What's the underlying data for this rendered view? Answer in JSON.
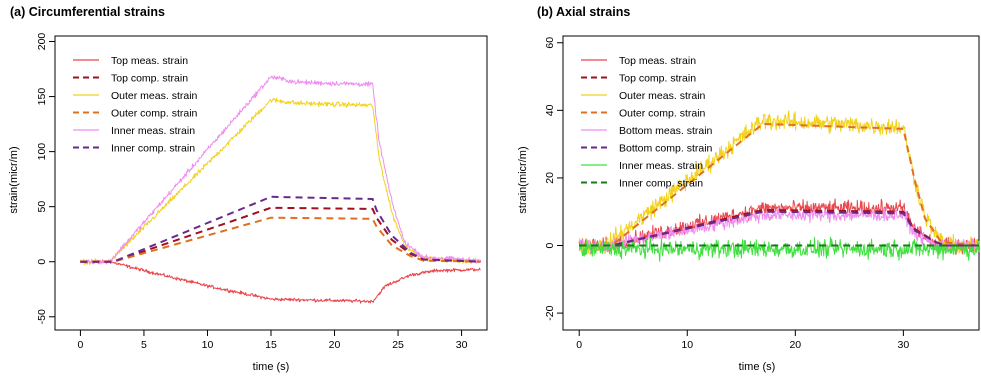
{
  "chart_data": [
    {
      "type": "line",
      "title": "(a) Circumferential strains",
      "xlabel": "time (s)",
      "ylabel": "strain(micr/m)",
      "xlim": [
        -2,
        32
      ],
      "ylim": [
        -62,
        205
      ],
      "xticks": [
        0,
        5,
        10,
        15,
        20,
        25,
        30
      ],
      "yticks": [
        -50,
        0,
        50,
        100,
        150,
        200
      ],
      "legend": "top-left",
      "series": [
        {
          "name": "Top meas. strain",
          "style": "solid",
          "color": "#e8474c",
          "noise": 1.2,
          "points": [
            [
              0,
              0
            ],
            [
              2.3,
              0
            ],
            [
              3,
              -2
            ],
            [
              5,
              -8
            ],
            [
              10,
              -22
            ],
            [
              15,
              -34
            ],
            [
              23,
              -36
            ],
            [
              23.3,
              -32
            ],
            [
              24,
              -22
            ],
            [
              26,
              -12
            ],
            [
              28,
              -8
            ],
            [
              31.5,
              -7
            ]
          ]
        },
        {
          "name": "Top comp. strain",
          "style": "dashed",
          "color": "#a01020",
          "points": [
            [
              0,
              0
            ],
            [
              2.6,
              0
            ],
            [
              15,
              49
            ],
            [
              23,
              48
            ],
            [
              23.3,
              40
            ],
            [
              24.5,
              20
            ],
            [
              26,
              7
            ],
            [
              27,
              2
            ],
            [
              31.5,
              0
            ]
          ]
        },
        {
          "name": "Outer meas. strain",
          "style": "solid",
          "color": "#f2d21c",
          "noise": 1.8,
          "points": [
            [
              0,
              0
            ],
            [
              2.3,
              0
            ],
            [
              15,
              147
            ],
            [
              17,
              144
            ],
            [
              23,
              142
            ],
            [
              23.5,
              95
            ],
            [
              24.5,
              45
            ],
            [
              25.5,
              15
            ],
            [
              27,
              3
            ],
            [
              31.5,
              0
            ]
          ]
        },
        {
          "name": "Outer comp. strain",
          "style": "dashed",
          "color": "#e07020",
          "points": [
            [
              0,
              0
            ],
            [
              2.6,
              0
            ],
            [
              15,
              40
            ],
            [
              23,
              39
            ],
            [
              23.3,
              32
            ],
            [
              24.5,
              15
            ],
            [
              26,
              5
            ],
            [
              27,
              1
            ],
            [
              31.5,
              0
            ]
          ]
        },
        {
          "name": "Inner meas. strain",
          "style": "solid",
          "color": "#f08df0",
          "noise": 1.8,
          "points": [
            [
              0,
              0
            ],
            [
              2.3,
              0
            ],
            [
              15,
              168
            ],
            [
              17,
              163
            ],
            [
              23,
              161
            ],
            [
              23.5,
              110
            ],
            [
              24.5,
              55
            ],
            [
              25.5,
              18
            ],
            [
              27,
              4
            ],
            [
              31.5,
              1
            ]
          ]
        },
        {
          "name": "Inner comp. strain",
          "style": "dashed",
          "color": "#6a2a8a",
          "points": [
            [
              0,
              0
            ],
            [
              2.6,
              0
            ],
            [
              15,
              59
            ],
            [
              23,
              57
            ],
            [
              23.3,
              47
            ],
            [
              24.5,
              24
            ],
            [
              26,
              8
            ],
            [
              27,
              2
            ],
            [
              31.5,
              0
            ]
          ]
        }
      ]
    },
    {
      "type": "line",
      "title": "(b) Axial strains",
      "xlabel": "time (s)",
      "ylabel": "strain(micr/m)",
      "xlim": [
        -1.5,
        37
      ],
      "ylim": [
        -25,
        62
      ],
      "xticks": [
        0,
        10,
        20,
        30
      ],
      "yticks": [
        -20,
        0,
        20,
        40,
        60
      ],
      "legend": "top-left",
      "series": [
        {
          "name": "Top meas. strain",
          "style": "solid",
          "color": "#e8474c",
          "noise": 1.8,
          "points": [
            [
              0,
              0
            ],
            [
              2.5,
              0
            ],
            [
              17,
              11
            ],
            [
              30,
              11
            ],
            [
              31,
              5
            ],
            [
              33,
              0
            ],
            [
              37,
              0
            ]
          ]
        },
        {
          "name": "Top comp. strain",
          "style": "dashed",
          "color": "#a01020",
          "points": [
            [
              0,
              0
            ],
            [
              3,
              0
            ],
            [
              17,
              10.5
            ],
            [
              30,
              10
            ],
            [
              31,
              5
            ],
            [
              33,
              1
            ],
            [
              34,
              0
            ],
            [
              37,
              0
            ]
          ]
        },
        {
          "name": "Outer meas. strain",
          "style": "solid",
          "color": "#f2d21c",
          "noise": 2.2,
          "points": [
            [
              0,
              0
            ],
            [
              2.5,
              0
            ],
            [
              17,
              37
            ],
            [
              30,
              35
            ],
            [
              31,
              20
            ],
            [
              32,
              9
            ],
            [
              33,
              3
            ],
            [
              34,
              0
            ],
            [
              37,
              0
            ]
          ]
        },
        {
          "name": "Outer comp. strain",
          "style": "dashed",
          "color": "#e07020",
          "points": [
            [
              0,
              0
            ],
            [
              3,
              0
            ],
            [
              17,
              36
            ],
            [
              30,
              34.5
            ],
            [
              31,
              20
            ],
            [
              32,
              8
            ],
            [
              33.5,
              1
            ],
            [
              37,
              0
            ]
          ]
        },
        {
          "name": "Bottom meas. strain",
          "style": "solid",
          "color": "#f08df0",
          "noise": 1.6,
          "points": [
            [
              0,
              0
            ],
            [
              2.5,
              0
            ],
            [
              17,
              9
            ],
            [
              30,
              9
            ],
            [
              31,
              4
            ],
            [
              33,
              0
            ],
            [
              37,
              0
            ]
          ]
        },
        {
          "name": "Bottom comp. strain",
          "style": "dashed",
          "color": "#6a2a8a",
          "points": [
            [
              0,
              0
            ],
            [
              3,
              0
            ],
            [
              17,
              10
            ],
            [
              30,
              9.5
            ],
            [
              31,
              4.5
            ],
            [
              33,
              1
            ],
            [
              34,
              0
            ],
            [
              37,
              0
            ]
          ]
        },
        {
          "name": "Inner meas. strain",
          "style": "solid",
          "color": "#40e040",
          "noise": 2.2,
          "points": [
            [
              0,
              -1
            ],
            [
              37,
              -1
            ]
          ]
        },
        {
          "name": "Inner comp. strain",
          "style": "dashed",
          "color": "#1a7a1a",
          "points": [
            [
              0,
              0
            ],
            [
              37,
              0
            ]
          ]
        }
      ]
    }
  ]
}
